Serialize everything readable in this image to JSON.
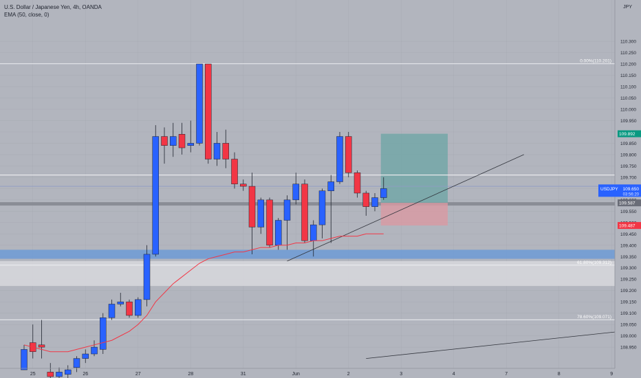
{
  "header": {
    "title": "U.S. Dollar / Japanese Yen, 4h, OANDA",
    "indicator": "EMA (50, close, 0)",
    "currency": "JPY"
  },
  "colors": {
    "background": "#b2b5be",
    "up": "#2962ff",
    "down": "#f23645",
    "ema": "#f23645",
    "target_zone": "#6fa6a6",
    "stop_zone": "#d99aa3",
    "support_zone": "#6d9bd6",
    "fib_zone": "#d5d6da",
    "price_label": "#2962ff",
    "target_label": "#089981",
    "stop_label": "#f23645",
    "gray_label": "#6a6d78"
  },
  "chart_data": {
    "type": "candlestick",
    "y_range": [
      108.92,
      110.27
    ],
    "y_ticks": [
      "108.950",
      "109.000",
      "109.050",
      "109.100",
      "109.150",
      "109.200",
      "109.250",
      "109.300",
      "109.350",
      "109.400",
      "109.450",
      "109.500",
      "109.550",
      "109.600",
      "109.650",
      "109.700",
      "109.750",
      "109.800",
      "109.850",
      "109.900",
      "109.950",
      "110.000",
      "110.050",
      "110.100",
      "110.150",
      "110.200",
      "110.250",
      "110.300"
    ],
    "x_ticks": [
      {
        "label": "25",
        "pos": 1
      },
      {
        "label": "26",
        "pos": 7
      },
      {
        "label": "27",
        "pos": 13
      },
      {
        "label": "28",
        "pos": 19
      },
      {
        "label": "31",
        "pos": 25
      },
      {
        "label": "Jun",
        "pos": 31
      },
      {
        "label": "2",
        "pos": 37
      },
      {
        "label": "3",
        "pos": 43
      },
      {
        "label": "4",
        "pos": 49
      },
      {
        "label": "7",
        "pos": 55
      },
      {
        "label": "8",
        "pos": 61
      },
      {
        "label": "9",
        "pos": 67
      }
    ],
    "candles": [
      {
        "o": 108.85,
        "h": 108.96,
        "l": 108.85,
        "c": 108.94
      },
      {
        "o": 108.97,
        "h": 109.05,
        "l": 108.9,
        "c": 108.93
      },
      {
        "o": 108.96,
        "h": 109.07,
        "l": 108.9,
        "c": 108.95
      },
      {
        "o": 108.84,
        "h": 108.88,
        "l": 108.8,
        "c": 108.82
      },
      {
        "o": 108.82,
        "h": 108.86,
        "l": 108.79,
        "c": 108.84
      },
      {
        "o": 108.83,
        "h": 108.87,
        "l": 108.8,
        "c": 108.85
      },
      {
        "o": 108.86,
        "h": 108.91,
        "l": 108.84,
        "c": 108.9
      },
      {
        "o": 108.9,
        "h": 108.94,
        "l": 108.88,
        "c": 108.92
      },
      {
        "o": 108.92,
        "h": 108.98,
        "l": 108.91,
        "c": 108.95
      },
      {
        "o": 108.94,
        "h": 109.1,
        "l": 108.92,
        "c": 109.08
      },
      {
        "o": 109.08,
        "h": 109.16,
        "l": 109.07,
        "c": 109.14
      },
      {
        "o": 109.14,
        "h": 109.19,
        "l": 109.13,
        "c": 109.15
      },
      {
        "o": 109.15,
        "h": 109.16,
        "l": 109.08,
        "c": 109.09
      },
      {
        "o": 109.09,
        "h": 109.17,
        "l": 109.08,
        "c": 109.16
      },
      {
        "o": 109.16,
        "h": 109.4,
        "l": 109.13,
        "c": 109.36
      },
      {
        "o": 109.36,
        "h": 109.93,
        "l": 109.35,
        "c": 109.88
      },
      {
        "o": 109.88,
        "h": 109.92,
        "l": 109.76,
        "c": 109.84
      },
      {
        "o": 109.84,
        "h": 109.94,
        "l": 109.79,
        "c": 109.88
      },
      {
        "o": 109.89,
        "h": 109.94,
        "l": 109.8,
        "c": 109.83
      },
      {
        "o": 109.84,
        "h": 109.95,
        "l": 109.81,
        "c": 109.85
      },
      {
        "o": 109.85,
        "h": 110.2,
        "l": 109.84,
        "c": 110.2
      },
      {
        "o": 110.2,
        "h": 110.2,
        "l": 109.76,
        "c": 109.78
      },
      {
        "o": 109.78,
        "h": 109.9,
        "l": 109.75,
        "c": 109.85
      },
      {
        "o": 109.85,
        "h": 109.91,
        "l": 109.74,
        "c": 109.78
      },
      {
        "o": 109.78,
        "h": 109.81,
        "l": 109.65,
        "c": 109.67
      },
      {
        "o": 109.67,
        "h": 109.69,
        "l": 109.64,
        "c": 109.66
      },
      {
        "o": 109.66,
        "h": 109.72,
        "l": 109.36,
        "c": 109.48
      },
      {
        "o": 109.48,
        "h": 109.61,
        "l": 109.45,
        "c": 109.6
      },
      {
        "o": 109.6,
        "h": 109.61,
        "l": 109.39,
        "c": 109.4
      },
      {
        "o": 109.4,
        "h": 109.52,
        "l": 109.38,
        "c": 109.51
      },
      {
        "o": 109.51,
        "h": 109.62,
        "l": 109.38,
        "c": 109.6
      },
      {
        "o": 109.6,
        "h": 109.72,
        "l": 109.58,
        "c": 109.67
      },
      {
        "o": 109.67,
        "h": 109.69,
        "l": 109.41,
        "c": 109.42
      },
      {
        "o": 109.42,
        "h": 109.51,
        "l": 109.35,
        "c": 109.49
      },
      {
        "o": 109.49,
        "h": 109.65,
        "l": 109.43,
        "c": 109.64
      },
      {
        "o": 109.64,
        "h": 109.71,
        "l": 109.41,
        "c": 109.68
      },
      {
        "o": 109.68,
        "h": 109.9,
        "l": 109.67,
        "c": 109.88
      },
      {
        "o": 109.88,
        "h": 109.9,
        "l": 109.7,
        "c": 109.72
      },
      {
        "o": 109.72,
        "h": 109.73,
        "l": 109.61,
        "c": 109.63
      },
      {
        "o": 109.63,
        "h": 109.64,
        "l": 109.53,
        "c": 109.57
      },
      {
        "o": 109.57,
        "h": 109.63,
        "l": 109.55,
        "c": 109.61
      },
      {
        "o": 109.61,
        "h": 109.7,
        "l": 109.6,
        "c": 109.65
      }
    ],
    "ema": [
      108.96,
      108.95,
      108.94,
      108.93,
      108.93,
      108.93,
      108.94,
      108.95,
      108.96,
      108.97,
      108.98,
      109.0,
      109.02,
      109.05,
      109.09,
      109.15,
      109.19,
      109.23,
      109.26,
      109.29,
      109.32,
      109.34,
      109.35,
      109.36,
      109.37,
      109.37,
      109.38,
      109.39,
      109.39,
      109.4,
      109.4,
      109.41,
      109.41,
      109.42,
      109.42,
      109.43,
      109.44,
      109.44,
      109.44,
      109.45,
      109.45,
      109.45
    ],
    "fib_levels": [
      {
        "label": "0.00%(110.201)",
        "price": 110.201
      },
      {
        "label": "61.80%(109.312)",
        "price": 109.312
      },
      {
        "label": "78.60%(109.071)",
        "price": 109.071
      }
    ],
    "horizontal_lines": [
      109.71,
      109.66
    ],
    "support_zone": [
      109.34,
      109.38
    ],
    "resistance_band": [
      109.575,
      109.59
    ],
    "fib_zone": [
      109.22,
      109.33
    ],
    "position": {
      "entry": 109.587,
      "target": 109.892,
      "stop": 109.487,
      "from_index": 41,
      "to_index": 48
    },
    "trendlines": [
      {
        "from": [
          30,
          109.33
        ],
        "to": [
          57,
          109.8
        ]
      },
      {
        "from": [
          39,
          108.9
        ],
        "to": [
          73,
          109.04
        ]
      }
    ],
    "price_labels": [
      {
        "kind": "target",
        "text": "109.892",
        "price": 109.892
      },
      {
        "kind": "current",
        "text": "USDJPY",
        "value": "109.650",
        "countdown": "03:56:20",
        "price": 109.65
      },
      {
        "kind": "entry",
        "text": "109.587",
        "price": 109.587
      },
      {
        "kind": "stop",
        "text": "109.487",
        "price": 109.487
      }
    ]
  }
}
